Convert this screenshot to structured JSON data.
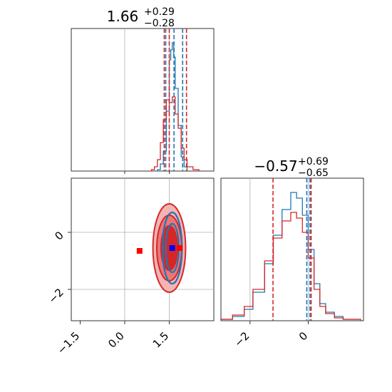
{
  "chart_data": [
    {
      "type": "histogram",
      "panel": "top-left",
      "title": {
        "median": "1.66",
        "plus": "+0.29",
        "minus": "−0.28"
      },
      "xlim": [
        -1.8,
        3.0
      ],
      "grid": true,
      "series": [
        {
          "color": "#1f77b4",
          "bins": [
            [
              1.0,
              0
            ],
            [
              1.1,
              0.01
            ],
            [
              1.2,
              0.05
            ],
            [
              1.3,
              0.14
            ],
            [
              1.4,
              0.42
            ],
            [
              1.5,
              0.78
            ],
            [
              1.55,
              0.85
            ],
            [
              1.6,
              0.9
            ],
            [
              1.65,
              0.8
            ],
            [
              1.7,
              0.58
            ],
            [
              1.8,
              0.32
            ],
            [
              1.9,
              0.1
            ],
            [
              2.0,
              0.03
            ],
            [
              2.1,
              0
            ]
          ],
          "quantile_lines": [
            1.38,
            1.66,
            1.95
          ]
        },
        {
          "color": "#d62728",
          "bins": [
            [
              0.8,
              0
            ],
            [
              0.9,
              0.01
            ],
            [
              1.0,
              0.03
            ],
            [
              1.1,
              0.08
            ],
            [
              1.2,
              0.2
            ],
            [
              1.3,
              0.36
            ],
            [
              1.4,
              0.5
            ],
            [
              1.5,
              0.48
            ],
            [
              1.6,
              0.52
            ],
            [
              1.7,
              0.4
            ],
            [
              1.8,
              0.3
            ],
            [
              1.9,
              0.16
            ],
            [
              2.0,
              0.08
            ],
            [
              2.1,
              0.03
            ],
            [
              2.3,
              0.01
            ],
            [
              2.5,
              0
            ]
          ],
          "quantile_lines": [
            1.33,
            1.5,
            2.08
          ]
        }
      ]
    },
    {
      "type": "histogram",
      "panel": "bottom-right",
      "title": {
        "median": "−0.57",
        "plus": "+0.69",
        "minus": "−0.65"
      },
      "xlim": [
        -3.0,
        1.9
      ],
      "grid": true,
      "xticks": [
        "−2",
        "0"
      ],
      "series": [
        {
          "color": "#1f77b4",
          "bins": [
            [
              -3.0,
              0.01
            ],
            [
              -2.6,
              0.03
            ],
            [
              -2.2,
              0.08
            ],
            [
              -1.9,
              0.2
            ],
            [
              -1.5,
              0.4
            ],
            [
              -1.2,
              0.6
            ],
            [
              -0.9,
              0.78
            ],
            [
              -0.6,
              0.9
            ],
            [
              -0.4,
              0.86
            ],
            [
              -0.2,
              0.74
            ],
            [
              0.0,
              0.5
            ],
            [
              0.2,
              0.26
            ],
            [
              0.4,
              0.12
            ],
            [
              0.6,
              0.06
            ],
            [
              0.9,
              0.03
            ],
            [
              1.2,
              0.01
            ],
            [
              1.8,
              0
            ]
          ],
          "quantile_lines": [
            -0.05,
            0.06
          ]
        },
        {
          "color": "#d62728",
          "bins": [
            [
              -3.0,
              0.01
            ],
            [
              -2.6,
              0.04
            ],
            [
              -2.2,
              0.1
            ],
            [
              -1.9,
              0.22
            ],
            [
              -1.5,
              0.42
            ],
            [
              -1.2,
              0.58
            ],
            [
              -0.9,
              0.7
            ],
            [
              -0.6,
              0.76
            ],
            [
              -0.4,
              0.72
            ],
            [
              -0.2,
              0.62
            ],
            [
              0.0,
              0.44
            ],
            [
              0.2,
              0.22
            ],
            [
              0.4,
              0.1
            ],
            [
              0.6,
              0.05
            ],
            [
              0.9,
              0.02
            ],
            [
              1.2,
              0.01
            ],
            [
              1.8,
              0
            ]
          ],
          "quantile_lines": [
            -1.21,
            0.1
          ]
        }
      ]
    },
    {
      "type": "contour",
      "panel": "bottom-left",
      "xlim": [
        -1.8,
        3.0
      ],
      "ylim": [
        -3.1,
        1.9
      ],
      "grid": true,
      "xticks": [
        "−1.5",
        "0.0",
        "1.5"
      ],
      "yticks": [
        "−2",
        "0"
      ],
      "contours": [
        {
          "color": "#d62728",
          "center": [
            1.5,
            -0.55
          ],
          "radii": [
            [
              0.55,
              1.55
            ],
            [
              0.42,
              1.15
            ],
            [
              0.28,
              0.78
            ]
          ],
          "filled": true
        },
        {
          "color": "#1f77b4",
          "center": [
            1.6,
            -0.55
          ],
          "radii": [
            [
              0.33,
              1.25
            ],
            [
              0.22,
              0.85
            ]
          ],
          "filled": false
        }
      ],
      "markers": [
        {
          "color": "#ff0000",
          "x": 0.5,
          "y": -0.65
        },
        {
          "color": "#0000ff",
          "x": 1.6,
          "y": -0.55
        },
        {
          "color": "#ff0000",
          "x": 1.85,
          "y": -0.55
        }
      ]
    }
  ]
}
